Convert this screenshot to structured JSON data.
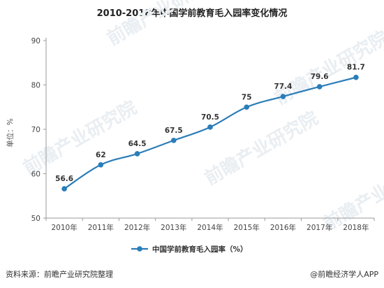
{
  "chart_data": {
    "type": "line",
    "title": "2010-2018年中国学前教育毛入园率变化情况",
    "ylabel": "单位：%",
    "xlabel": "",
    "categories": [
      "2010年",
      "2011年",
      "2012年",
      "2013年",
      "2014年",
      "2015年",
      "2016年",
      "2017年",
      "2018年"
    ],
    "series": [
      {
        "name": "中国学前教育毛入园率（%）",
        "values": [
          56.6,
          62,
          64.5,
          67.5,
          70.5,
          75,
          77.4,
          79.6,
          81.7
        ],
        "labels": [
          "56.6",
          "62",
          "64.5",
          "67.5",
          "70.5",
          "75",
          "77.4",
          "79.6",
          "81.7"
        ],
        "color": "#2a7db8"
      }
    ],
    "yticks": [
      "50",
      "60",
      "70",
      "80",
      "90"
    ],
    "ylim": [
      50,
      90
    ],
    "grid": false,
    "legend": "bottom"
  },
  "watermark": "前瞻产业研究院",
  "footer": {
    "source": "资料来源：前瞻产业研究院整理",
    "credit": "@前瞻经济学人APP"
  }
}
